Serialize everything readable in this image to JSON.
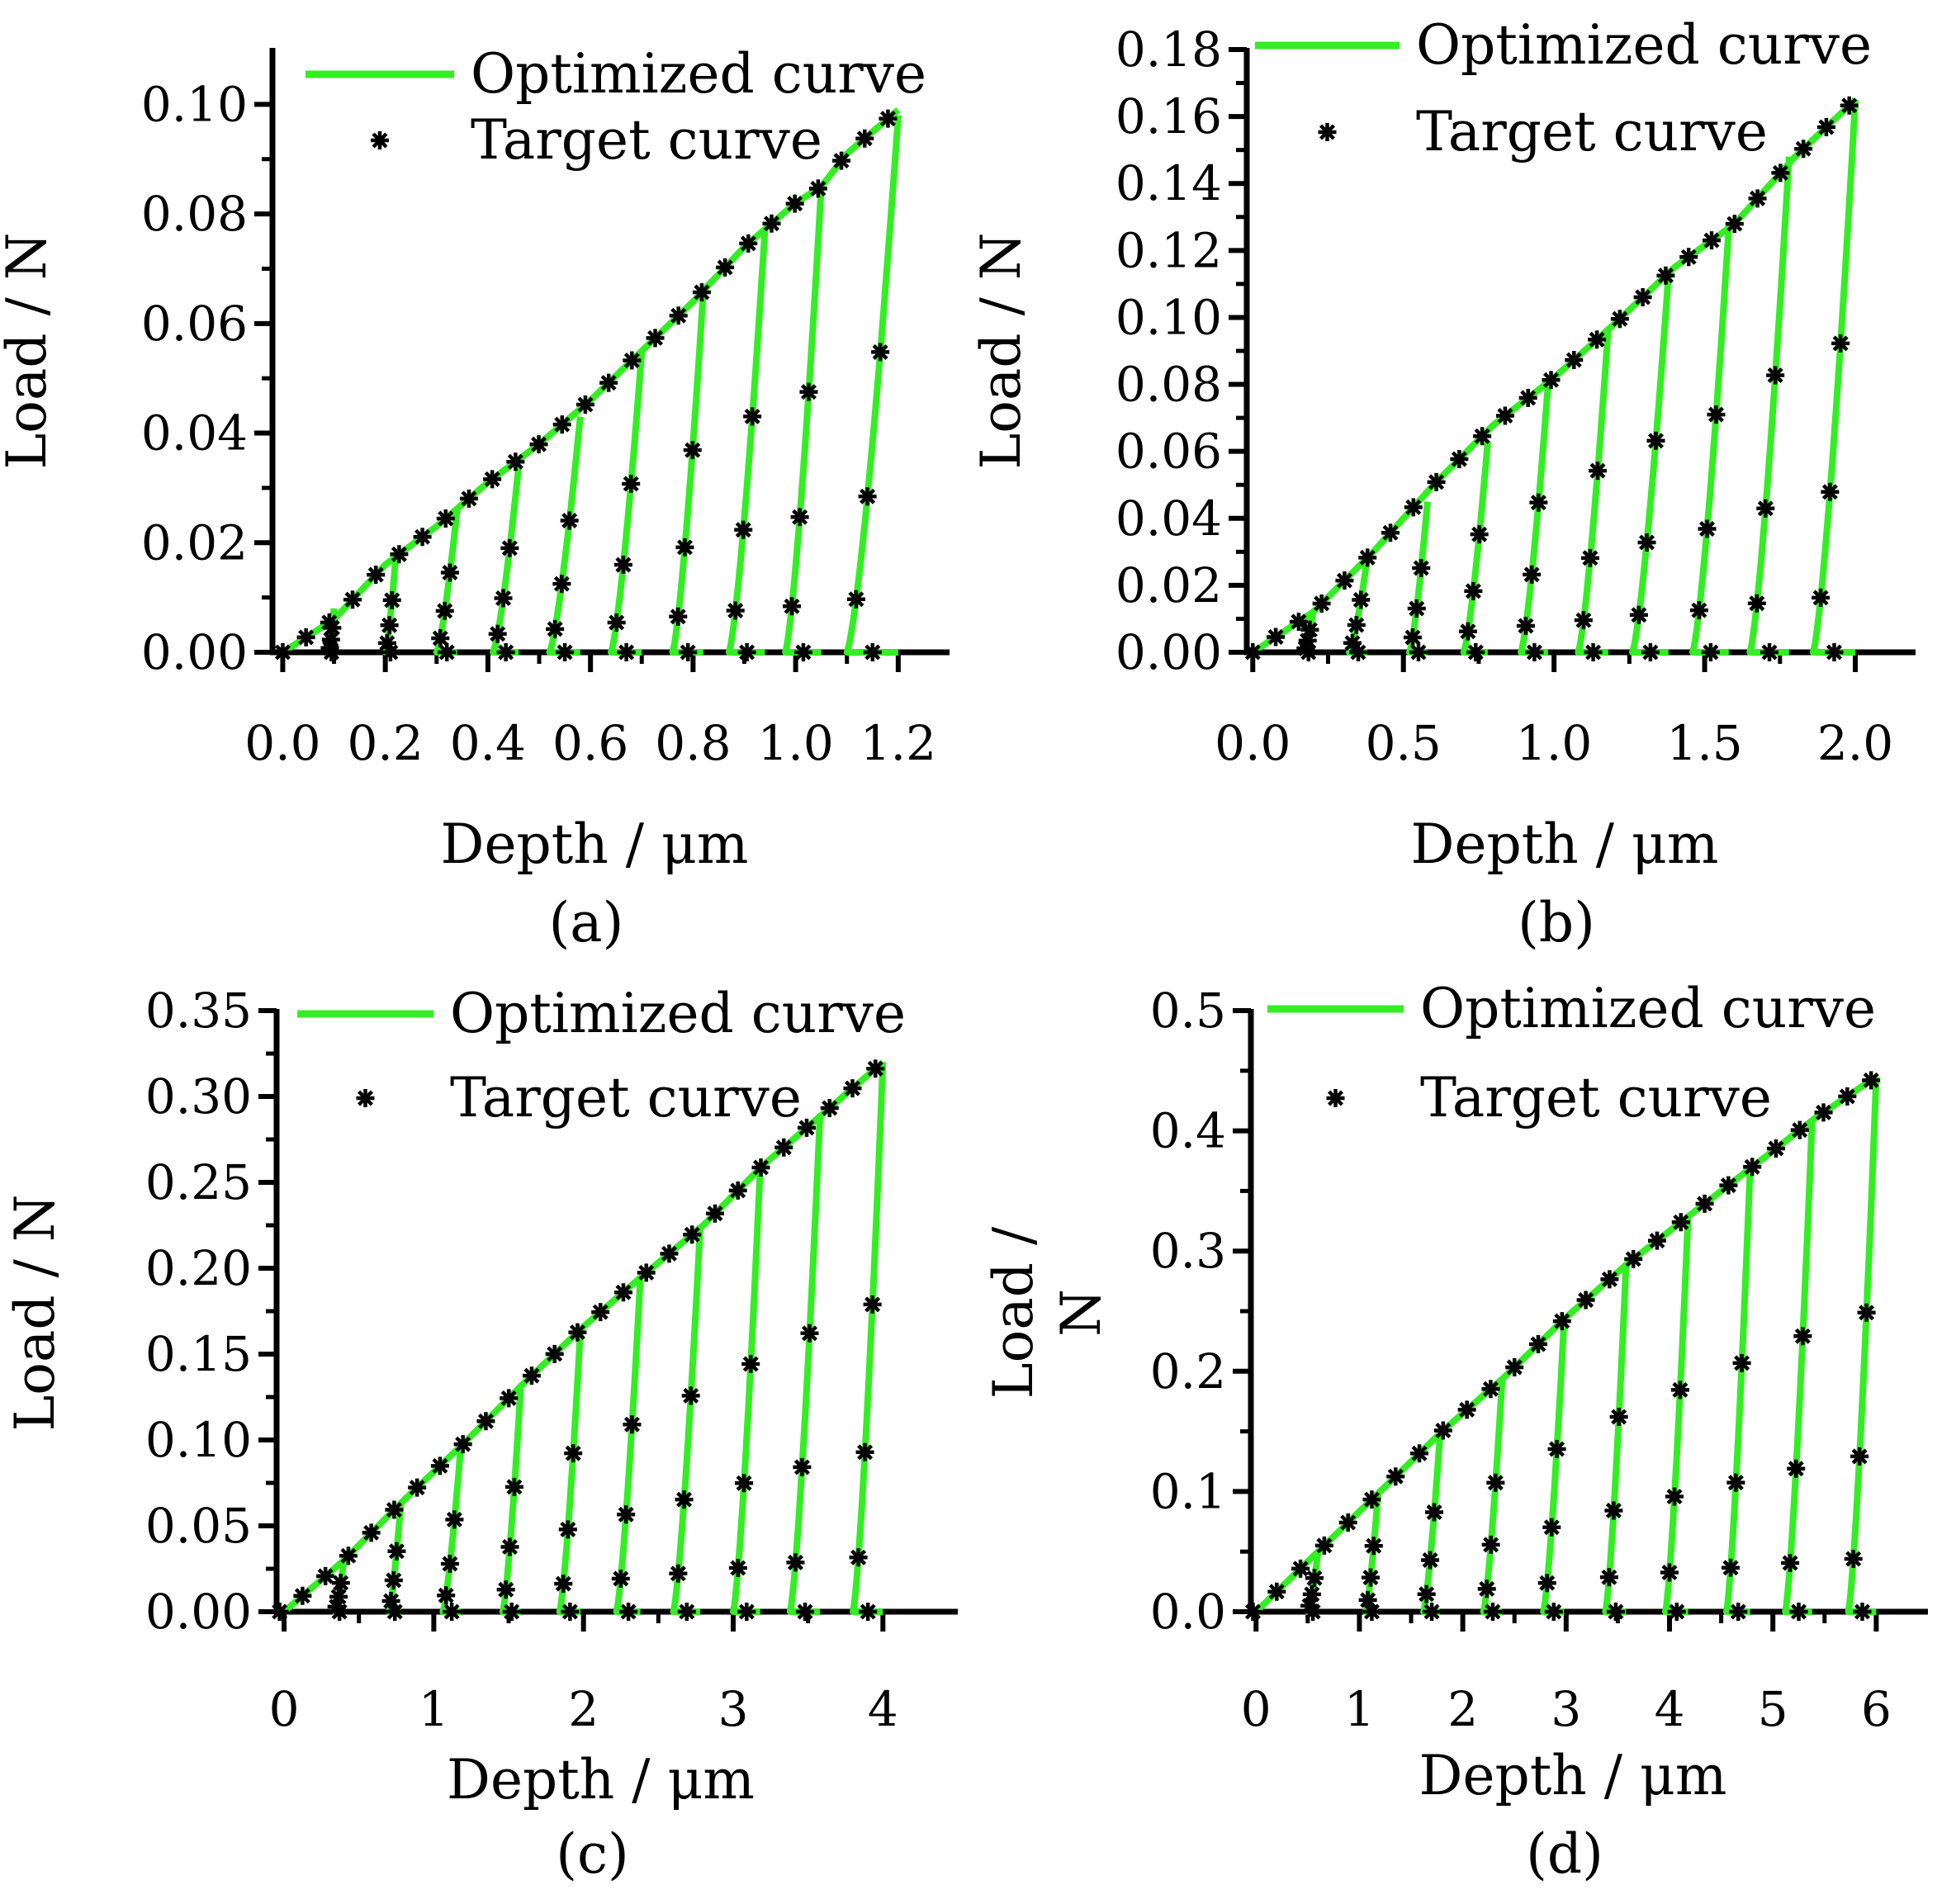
{
  "figure": {
    "colors": {
      "optimized": "#33ee22",
      "target": "#000000",
      "axis": "#000000"
    },
    "legend_labels": {
      "optimized": "Optimized curve",
      "target": "Target curve"
    }
  },
  "chart_data": [
    {
      "id": "a",
      "type": "line",
      "panel_label": "(a)",
      "xlabel": "Depth / μm",
      "ylabel": "Load / N",
      "xlim": [
        -0.02,
        1.3
      ],
      "ylim": [
        0,
        0.11
      ],
      "xticks": [
        "0.0",
        "0.2",
        "0.4",
        "0.6",
        "0.8",
        "1.0",
        "1.2"
      ],
      "xtick_values": [
        0,
        0.2,
        0.4,
        0.6,
        0.8,
        1.0,
        1.2
      ],
      "yticks": [
        "0.00",
        "0.02",
        "0.04",
        "0.06",
        "0.08",
        "0.10"
      ],
      "ytick_values": [
        0,
        0.02,
        0.04,
        0.06,
        0.08,
        0.1
      ],
      "legend": "top-left",
      "loading_curve": [
        [
          0,
          0
        ],
        [
          0.1,
          0.006
        ],
        [
          0.2,
          0.016
        ],
        [
          0.3,
          0.023
        ],
        [
          0.4,
          0.031
        ],
        [
          0.5,
          0.038
        ],
        [
          0.6,
          0.046
        ],
        [
          0.7,
          0.055
        ],
        [
          0.8,
          0.064
        ],
        [
          0.9,
          0.074
        ],
        [
          1.0,
          0.082
        ],
        [
          1.05,
          0.085
        ],
        [
          1.1,
          0.091
        ],
        [
          1.2,
          0.099
        ]
      ],
      "unload_cycles": [
        {
          "peak_depth": 0.1,
          "peak_load": 0.008,
          "residual_depth": 0.09
        },
        {
          "peak_depth": 0.22,
          "peak_load": 0.017,
          "residual_depth": 0.2
        },
        {
          "peak_depth": 0.34,
          "peak_load": 0.026,
          "residual_depth": 0.3
        },
        {
          "peak_depth": 0.46,
          "peak_load": 0.034,
          "residual_depth": 0.41
        },
        {
          "peak_depth": 0.58,
          "peak_load": 0.043,
          "residual_depth": 0.52
        },
        {
          "peak_depth": 0.7,
          "peak_load": 0.055,
          "residual_depth": 0.64
        },
        {
          "peak_depth": 0.82,
          "peak_load": 0.066,
          "residual_depth": 0.76
        },
        {
          "peak_depth": 0.94,
          "peak_load": 0.077,
          "residual_depth": 0.87
        },
        {
          "peak_depth": 1.05,
          "peak_load": 0.085,
          "residual_depth": 0.98
        },
        {
          "peak_depth": 1.2,
          "peak_load": 0.098,
          "residual_depth": 1.1
        }
      ]
    },
    {
      "id": "b",
      "type": "line",
      "panel_label": "(b)",
      "xlabel": "Depth / μm",
      "ylabel": "Load / N",
      "xlim": [
        -0.02,
        2.2
      ],
      "ylim": [
        0,
        0.18
      ],
      "xticks": [
        "0.0",
        "0.5",
        "1.0",
        "1.5",
        "2.0"
      ],
      "xtick_values": [
        0,
        0.5,
        1.0,
        1.5,
        2.0
      ],
      "yticks": [
        "0.00",
        "0.02",
        "0.04",
        "0.06",
        "0.08",
        "0.10",
        "0.12",
        "0.14",
        "0.16",
        "0.18"
      ],
      "ytick_values": [
        0,
        0.02,
        0.04,
        0.06,
        0.08,
        0.1,
        0.12,
        0.14,
        0.16,
        0.18
      ],
      "legend": "top",
      "loading_curve": [
        [
          0,
          0
        ],
        [
          0.2,
          0.012
        ],
        [
          0.4,
          0.03
        ],
        [
          0.6,
          0.05
        ],
        [
          0.8,
          0.068
        ],
        [
          1.0,
          0.082
        ],
        [
          1.2,
          0.098
        ],
        [
          1.4,
          0.115
        ],
        [
          1.6,
          0.128
        ],
        [
          1.8,
          0.148
        ],
        [
          2.0,
          0.165
        ]
      ],
      "unload_cycles": [
        {
          "peak_depth": 0.2,
          "peak_load": 0.012,
          "residual_depth": 0.17
        },
        {
          "peak_depth": 0.38,
          "peak_load": 0.028,
          "residual_depth": 0.32
        },
        {
          "peak_depth": 0.58,
          "peak_load": 0.045,
          "residual_depth": 0.52
        },
        {
          "peak_depth": 0.78,
          "peak_load": 0.063,
          "residual_depth": 0.7
        },
        {
          "peak_depth": 0.98,
          "peak_load": 0.08,
          "residual_depth": 0.89
        },
        {
          "peak_depth": 1.18,
          "peak_load": 0.097,
          "residual_depth": 1.08
        },
        {
          "peak_depth": 1.38,
          "peak_load": 0.113,
          "residual_depth": 1.26
        },
        {
          "peak_depth": 1.58,
          "peak_load": 0.127,
          "residual_depth": 1.46
        },
        {
          "peak_depth": 1.78,
          "peak_load": 0.148,
          "residual_depth": 1.65
        },
        {
          "peak_depth": 2.0,
          "peak_load": 0.165,
          "residual_depth": 1.86
        }
      ]
    },
    {
      "id": "c",
      "type": "line",
      "panel_label": "(c)",
      "xlabel": "Depth / μm",
      "ylabel": "Load / N",
      "xlim": [
        -0.05,
        4.5
      ],
      "ylim": [
        0,
        0.35
      ],
      "xticks": [
        "0",
        "1",
        "2",
        "3",
        "4"
      ],
      "xtick_values": [
        0,
        1,
        2,
        3,
        4
      ],
      "yticks": [
        "0.00",
        "0.05",
        "0.10",
        "0.15",
        "0.20",
        "0.25",
        "0.30",
        "0.35"
      ],
      "ytick_values": [
        0,
        0.05,
        0.1,
        0.15,
        0.2,
        0.25,
        0.3,
        0.35
      ],
      "legend": "top",
      "loading_curve": [
        [
          0,
          0
        ],
        [
          0.4,
          0.03
        ],
        [
          0.8,
          0.065
        ],
        [
          1.2,
          0.098
        ],
        [
          1.6,
          0.133
        ],
        [
          2.0,
          0.166
        ],
        [
          2.4,
          0.196
        ],
        [
          2.8,
          0.225
        ],
        [
          3.2,
          0.26
        ],
        [
          3.6,
          0.29
        ],
        [
          4.0,
          0.32
        ]
      ],
      "unload_cycles": [
        {
          "peak_depth": 0.4,
          "peak_load": 0.03,
          "residual_depth": 0.34
        },
        {
          "peak_depth": 0.78,
          "peak_load": 0.063,
          "residual_depth": 0.7
        },
        {
          "peak_depth": 1.18,
          "peak_load": 0.096,
          "residual_depth": 1.06
        },
        {
          "peak_depth": 1.58,
          "peak_load": 0.13,
          "residual_depth": 1.46
        },
        {
          "peak_depth": 1.98,
          "peak_load": 0.165,
          "residual_depth": 1.84
        },
        {
          "peak_depth": 2.38,
          "peak_load": 0.195,
          "residual_depth": 2.22
        },
        {
          "peak_depth": 2.78,
          "peak_load": 0.225,
          "residual_depth": 2.6
        },
        {
          "peak_depth": 3.18,
          "peak_load": 0.258,
          "residual_depth": 3.0
        },
        {
          "peak_depth": 3.58,
          "peak_load": 0.29,
          "residual_depth": 3.38
        },
        {
          "peak_depth": 4.0,
          "peak_load": 0.32,
          "residual_depth": 3.8
        }
      ]
    },
    {
      "id": "d",
      "type": "line",
      "panel_label": "(d)",
      "xlabel": "Depth / μm",
      "ylabel_lines": [
        "Load /",
        "N"
      ],
      "xlim": [
        -0.05,
        6.5
      ],
      "ylim": [
        0,
        0.5
      ],
      "xticks": [
        "0",
        "1",
        "2",
        "3",
        "4",
        "5",
        "6"
      ],
      "xtick_values": [
        0,
        1,
        2,
        3,
        4,
        5,
        6
      ],
      "yticks": [
        "0.0",
        "0.1",
        "0.2",
        "0.3",
        "0.4",
        "0.5"
      ],
      "ytick_values": [
        0,
        0.1,
        0.2,
        0.3,
        0.4,
        0.5
      ],
      "legend": "top",
      "loading_curve": [
        [
          0,
          0
        ],
        [
          0.6,
          0.05
        ],
        [
          1.2,
          0.1
        ],
        [
          1.8,
          0.15
        ],
        [
          2.4,
          0.195
        ],
        [
          3.0,
          0.245
        ],
        [
          3.6,
          0.29
        ],
        [
          4.2,
          0.33
        ],
        [
          4.8,
          0.37
        ],
        [
          5.4,
          0.41
        ],
        [
          6.0,
          0.445
        ]
      ],
      "unload_cycles": [
        {
          "peak_depth": 0.6,
          "peak_load": 0.05,
          "residual_depth": 0.5
        },
        {
          "peak_depth": 1.18,
          "peak_load": 0.098,
          "residual_depth": 1.06
        },
        {
          "peak_depth": 1.78,
          "peak_load": 0.148,
          "residual_depth": 1.62
        },
        {
          "peak_depth": 2.38,
          "peak_load": 0.192,
          "residual_depth": 2.2
        },
        {
          "peak_depth": 2.98,
          "peak_load": 0.242,
          "residual_depth": 2.78
        },
        {
          "peak_depth": 3.58,
          "peak_load": 0.29,
          "residual_depth": 3.38
        },
        {
          "peak_depth": 4.18,
          "peak_load": 0.33,
          "residual_depth": 3.96
        },
        {
          "peak_depth": 4.78,
          "peak_load": 0.37,
          "residual_depth": 4.55
        },
        {
          "peak_depth": 5.38,
          "peak_load": 0.41,
          "residual_depth": 5.12
        },
        {
          "peak_depth": 6.0,
          "peak_load": 0.445,
          "residual_depth": 5.73
        }
      ]
    }
  ]
}
